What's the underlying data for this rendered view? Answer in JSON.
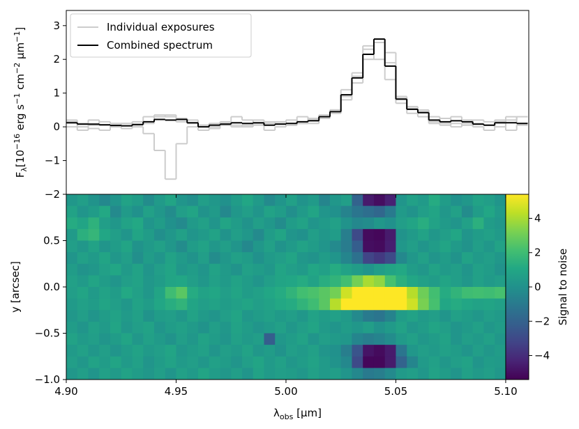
{
  "chart_data": [
    {
      "type": "step",
      "ylabel": [
        "F",
        "λ",
        "[10",
        "−16",
        " erg s",
        "−1",
        " cm",
        "−2",
        " μm",
        "−1",
        "]"
      ],
      "x": [
        4.9025,
        4.9075,
        4.9125,
        4.9175,
        4.9225,
        4.9275,
        4.9325,
        4.9375,
        4.9425,
        4.9475,
        4.9525,
        4.9575,
        4.9625,
        4.9675,
        4.9725,
        4.9775,
        4.9825,
        4.9875,
        4.9925,
        4.9975,
        5.0025,
        5.0075,
        5.0125,
        5.0175,
        5.0225,
        5.0275,
        5.0325,
        5.0375,
        5.0425,
        5.0475,
        5.0525,
        5.0575,
        5.0625,
        5.0675,
        5.0725,
        5.0775,
        5.0825,
        5.0875,
        5.0925,
        5.0975,
        5.1025,
        5.1075
      ],
      "series": [
        {
          "name": "Individual exposures",
          "color": "#cccccc",
          "values": [
            [
              0.0,
              0.0,
              -0.05,
              -0.1,
              0.05,
              0.1,
              0.0,
              -0.2,
              -0.7,
              -1.55,
              -0.5,
              0.0,
              0.05,
              0.1,
              0.15,
              0.3,
              0.2,
              0.1,
              -0.1,
              0.0,
              0.05,
              0.3,
              0.1,
              0.25,
              0.5,
              1.1,
              1.6,
              2.4,
              2.0,
              1.4,
              0.7,
              0.4,
              0.3,
              0.1,
              0.05,
              0.3,
              0.2,
              0.0,
              -0.1,
              0.2,
              0.3,
              0.1
            ],
            [
              0.2,
              0.1,
              0.2,
              0.05,
              0.0,
              0.1,
              0.15,
              0.3,
              0.35,
              0.3,
              0.15,
              0.1,
              -0.1,
              0.0,
              0.05,
              0.0,
              0.05,
              0.2,
              0.15,
              0.1,
              0.2,
              0.1,
              0.25,
              0.35,
              0.4,
              0.8,
              1.3,
              2.0,
              2.5,
              2.2,
              0.9,
              0.6,
              0.5,
              0.3,
              0.1,
              0.0,
              0.1,
              0.2,
              0.15,
              0.0,
              0.2,
              0.3
            ],
            [
              0.15,
              -0.1,
              0.05,
              0.15,
              0.1,
              -0.05,
              0.05,
              0.1,
              0.3,
              0.35,
              0.25,
              0.2,
              0.05,
              -0.05,
              0.1,
              0.05,
              0.0,
              0.05,
              0.1,
              0.15,
              0.05,
              0.1,
              0.2,
              0.3,
              0.5,
              0.9,
              1.5,
              2.3,
              2.6,
              1.9,
              0.85,
              0.55,
              0.45,
              0.15,
              0.25,
              0.1,
              0.05,
              0.1,
              0.05,
              0.15,
              -0.1,
              0.05
            ]
          ]
        },
        {
          "name": "Combined spectrum",
          "color": "#000000",
          "values": [
            0.12,
            0.08,
            0.08,
            0.06,
            0.04,
            0.03,
            0.07,
            0.15,
            0.22,
            0.2,
            0.22,
            0.12,
            0.0,
            0.05,
            0.08,
            0.12,
            0.1,
            0.12,
            0.05,
            0.08,
            0.1,
            0.15,
            0.18,
            0.3,
            0.45,
            0.95,
            1.45,
            2.15,
            2.6,
            1.8,
            0.82,
            0.52,
            0.42,
            0.2,
            0.15,
            0.18,
            0.15,
            0.08,
            0.05,
            0.12,
            0.12,
            0.1
          ]
        }
      ],
      "xlim": [
        4.9,
        5.1105
      ],
      "ylim": [
        -2,
        3.45
      ],
      "yticks": [
        {
          "value": -2,
          "label": "−2"
        },
        {
          "value": -1,
          "label": "−1"
        },
        0,
        1,
        2,
        3
      ],
      "legend": "upper left"
    },
    {
      "type": "heatmap",
      "xlabel": [
        "λ",
        "obs",
        " [μm]"
      ],
      "ylabel": "y [arcsec]",
      "xlim": [
        4.9,
        5.1105
      ],
      "extent": [
        4.9,
        5.1,
        -1.0,
        1.0
      ],
      "ylim": [
        -1.0,
        1.0
      ],
      "xticks": [
        {
          "value": 4.9,
          "label": "4.90"
        },
        {
          "value": 4.95,
          "label": "4.95"
        },
        {
          "value": 5.0,
          "label": "5.00"
        },
        {
          "value": 5.05,
          "label": "5.05"
        },
        {
          "value": 5.1,
          "label": "5.10"
        }
      ],
      "yticks": [
        {
          "value": -1.0,
          "label": "−1.0"
        },
        {
          "value": -0.5,
          "label": "−0.5"
        },
        {
          "value": 0.0,
          "label": "0.0"
        },
        0.5
      ],
      "colormap": "viridis",
      "clim": [
        -5.4,
        5.4
      ],
      "cticks": [
        {
          "value": -4,
          "label": "−4"
        },
        {
          "value": -2,
          "label": "−2"
        },
        0,
        2,
        4
      ],
      "clabel": "Signal to noise",
      "values": [
        [
          0.3,
          0.6,
          0.1,
          -0.4,
          0.2,
          0.8,
          0.5,
          -0.2,
          0.4,
          0.9,
          0.2,
          -0.1,
          0.6,
          0.3,
          0.0,
          0.5,
          1.0,
          0.4,
          -0.3,
          0.2,
          0.7,
          0.1,
          0.4,
          -0.5,
          0.3,
          0.6,
          -2.0,
          -4.6,
          -5.0,
          -4.4,
          0.2,
          0.7,
          0.4,
          1.2,
          0.5,
          0.0,
          0.3,
          0.8,
          0.6,
          0.2
        ],
        [
          0.8,
          0.2,
          0.5,
          1.1,
          -0.3,
          0.4,
          0.0,
          0.7,
          0.3,
          -0.2,
          0.6,
          0.9,
          0.1,
          0.4,
          -0.4,
          0.3,
          0.6,
          0.2,
          0.8,
          0.5,
          -0.1,
          0.4,
          0.9,
          0.2,
          0.0,
          -0.6,
          -1.2,
          -1.5,
          -1.8,
          -1.0,
          0.4,
          0.1,
          0.6,
          0.9,
          0.3,
          0.7,
          -0.2,
          0.5,
          1.0,
          0.4
        ],
        [
          1.2,
          0.9,
          1.5,
          0.6,
          0.3,
          0.8,
          1.1,
          0.2,
          0.5,
          0.0,
          -0.3,
          0.4,
          0.7,
          0.2,
          0.9,
          0.5,
          0.1,
          0.6,
          0.3,
          -0.2,
          0.5,
          0.8,
          0.2,
          0.4,
          0.7,
          0.1,
          -0.4,
          -0.2,
          0.3,
          0.0,
          0.6,
          0.9,
          1.3,
          0.8,
          0.4,
          0.2,
          0.7,
          1.4,
          0.5,
          0.3
        ],
        [
          0.4,
          1.4,
          1.7,
          1.0,
          0.6,
          0.2,
          0.9,
          0.5,
          -0.1,
          0.3,
          0.7,
          0.2,
          0.4,
          0.8,
          0.1,
          0.6,
          0.3,
          -0.3,
          0.5,
          0.9,
          0.2,
          0.0,
          0.6,
          0.3,
          0.5,
          -0.8,
          -3.0,
          -5.1,
          -5.2,
          -4.6,
          0.1,
          0.4,
          0.8,
          0.3,
          0.6,
          1.0,
          0.2,
          0.5,
          0.7,
          0.4
        ],
        [
          0.6,
          0.3,
          0.8,
          0.2,
          0.5,
          0.9,
          0.1,
          0.4,
          0.7,
          0.3,
          -0.2,
          0.5,
          0.8,
          0.3,
          0.6,
          0.2,
          -0.4,
          0.3,
          0.7,
          0.1,
          0.4,
          0.8,
          0.5,
          0.2,
          -0.3,
          -0.9,
          -2.2,
          -5.0,
          -5.1,
          -4.5,
          0.3,
          0.6,
          0.2,
          0.5,
          0.9,
          0.4,
          0.1,
          0.6,
          0.3,
          0.8
        ],
        [
          0.2,
          0.7,
          0.4,
          0.9,
          0.3,
          0.6,
          -0.1,
          0.5,
          0.2,
          0.8,
          0.4,
          0.1,
          0.6,
          -0.2,
          0.3,
          0.7,
          0.5,
          0.0,
          0.4,
          0.6,
          0.9,
          0.3,
          0.1,
          0.5,
          0.2,
          -0.5,
          -1.4,
          -3.2,
          -3.6,
          -3.0,
          -0.4,
          0.3,
          0.7,
          0.2,
          0.5,
          0.1,
          0.8,
          0.4,
          0.6,
          0.3
        ],
        [
          0.5,
          0.1,
          0.3,
          0.7,
          1.0,
          0.4,
          0.8,
          0.2,
          0.6,
          0.9,
          0.3,
          0.5,
          0.2,
          0.8,
          0.4,
          0.1,
          0.7,
          0.5,
          0.3,
          0.9,
          0.6,
          0.4,
          1.0,
          0.7,
          1.2,
          0.8,
          0.5,
          0.2,
          0.6,
          0.9,
          1.1,
          0.5,
          0.3,
          0.8,
          0.4,
          0.6,
          0.2,
          0.7,
          0.5,
          0.1
        ],
        [
          0.7,
          0.4,
          0.9,
          0.5,
          0.2,
          0.6,
          0.8,
          0.3,
          0.5,
          0.9,
          1.0,
          0.6,
          0.3,
          0.7,
          0.4,
          0.8,
          0.5,
          0.2,
          0.6,
          0.9,
          1.0,
          1.2,
          0.8,
          1.3,
          1.6,
          2.1,
          3.1,
          4.0,
          3.6,
          2.2,
          1.4,
          1.0,
          0.7,
          0.5,
          0.9,
          0.6,
          0.3,
          0.7,
          0.4,
          0.6
        ],
        [
          0.6,
          0.9,
          0.4,
          0.8,
          0.5,
          1.1,
          0.7,
          0.3,
          0.9,
          2.0,
          2.6,
          1.2,
          0.8,
          1.0,
          0.6,
          0.9,
          0.5,
          0.7,
          1.0,
          1.2,
          1.6,
          2.1,
          2.3,
          2.6,
          3.1,
          4.6,
          5.6,
          5.6,
          5.6,
          5.6,
          5.5,
          4.2,
          3.0,
          2.1,
          1.2,
          1.6,
          2.0,
          2.1,
          2.0,
          2.2
        ],
        [
          0.4,
          0.7,
          0.5,
          0.9,
          0.6,
          0.3,
          0.8,
          0.5,
          1.0,
          1.3,
          1.6,
          0.9,
          0.6,
          0.8,
          0.5,
          0.7,
          0.9,
          0.6,
          0.8,
          1.1,
          1.2,
          1.6,
          2.0,
          2.6,
          4.2,
          5.6,
          5.6,
          5.6,
          5.6,
          5.6,
          5.6,
          4.6,
          3.2,
          2.2,
          1.0,
          1.2,
          1.0,
          0.8,
          0.9,
          0.7
        ],
        [
          0.3,
          0.6,
          0.2,
          0.5,
          0.8,
          0.4,
          0.7,
          0.1,
          0.5,
          0.6,
          0.3,
          0.8,
          0.4,
          0.2,
          0.6,
          0.9,
          0.3,
          0.5,
          0.7,
          0.4,
          0.6,
          0.3,
          0.8,
          0.5,
          0.7,
          0.4,
          -0.3,
          -1.0,
          -1.2,
          -0.6,
          0.5,
          0.8,
          0.4,
          0.6,
          0.2,
          0.7,
          0.5,
          0.3,
          0.6,
          0.4
        ],
        [
          0.5,
          0.2,
          0.7,
          0.4,
          0.9,
          0.3,
          0.6,
          0.8,
          0.2,
          0.5,
          0.7,
          0.4,
          0.1,
          0.6,
          0.3,
          0.8,
          0.5,
          0.2,
          0.4,
          0.7,
          0.3,
          0.6,
          0.9,
          0.4,
          0.2,
          0.5,
          0.3,
          0.6,
          0.1,
          0.4,
          0.8,
          0.3,
          0.5,
          0.9,
          0.6,
          0.2,
          0.4,
          0.7,
          0.3,
          0.5
        ],
        [
          0.8,
          0.4,
          0.6,
          0.2,
          0.5,
          0.9,
          0.3,
          0.7,
          0.4,
          0.1,
          0.6,
          0.3,
          0.8,
          0.5,
          0.2,
          0.7,
          0.4,
          0.6,
          -2.2,
          0.3,
          0.5,
          0.8,
          0.2,
          0.6,
          0.4,
          0.3,
          -0.5,
          -0.8,
          -0.6,
          -0.2,
          0.4,
          0.7,
          0.3,
          0.5,
          0.8,
          0.2,
          0.6,
          0.4,
          0.7,
          0.3
        ],
        [
          0.4,
          0.7,
          0.3,
          0.6,
          0.2,
          0.5,
          0.8,
          0.4,
          0.6,
          0.9,
          0.3,
          0.5,
          0.7,
          0.2,
          0.6,
          0.4,
          0.8,
          0.3,
          0.5,
          0.1,
          0.6,
          0.4,
          0.7,
          0.2,
          0.0,
          -0.8,
          -2.6,
          -4.8,
          -5.1,
          -4.6,
          -1.2,
          0.3,
          0.6,
          0.4,
          0.7,
          0.5,
          0.2,
          0.6,
          0.3,
          0.5
        ],
        [
          0.6,
          0.3,
          0.8,
          0.5,
          0.9,
          0.4,
          0.7,
          0.2,
          0.5,
          0.8,
          0.4,
          0.6,
          0.3,
          0.7,
          0.5,
          0.2,
          0.6,
          0.9,
          0.4,
          0.7,
          0.3,
          0.5,
          0.8,
          0.4,
          0.1,
          -0.4,
          -3.0,
          -5.2,
          -5.2,
          -4.6,
          -2.0,
          -0.5,
          0.4,
          0.7,
          0.3,
          0.6,
          0.8,
          0.2,
          0.5,
          0.4
        ],
        [
          0.3,
          0.6,
          0.2,
          0.7,
          0.4,
          0.8,
          0.5,
          0.3,
          0.6,
          0.2,
          0.7,
          0.4,
          0.9,
          0.5,
          0.3,
          0.6,
          0.2,
          0.8,
          0.4,
          0.6,
          0.5,
          0.3,
          0.7,
          0.4,
          0.6,
          0.2,
          -0.4,
          -1.0,
          -0.8,
          -0.3,
          0.4,
          0.6,
          0.3,
          0.8,
          0.5,
          0.2,
          0.7,
          0.4,
          0.6,
          0.3
        ]
      ]
    }
  ]
}
